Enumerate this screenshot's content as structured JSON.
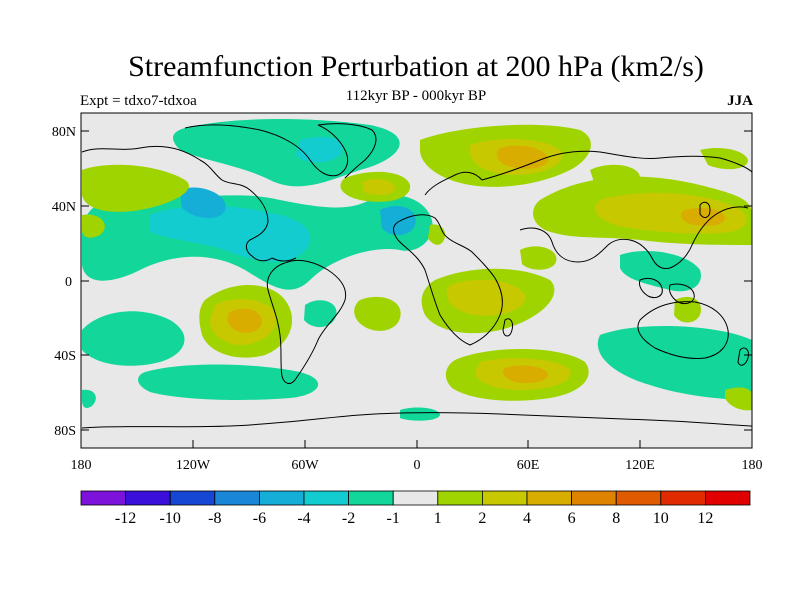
{
  "title": "Streamfunction Perturbation at 200 hPa (km2/s)",
  "subtitle": "112kyr BP - 000kyr BP",
  "experiment": "Expt = tdxo7-tdxoa",
  "season": "JJA",
  "y_ticks": [
    "80N",
    "40N",
    "0",
    "40S",
    "80S"
  ],
  "x_ticks": [
    "180",
    "120W",
    "60W",
    "0",
    "60E",
    "120E",
    "180"
  ],
  "colorbar": {
    "colors": [
      "#7d12db",
      "#3a0fd9",
      "#1546d4",
      "#1a86d6",
      "#14aed6",
      "#13ccd0",
      "#12d69a",
      "#e8e8e8",
      "#a0d400",
      "#c8c800",
      "#d9ac00",
      "#de8300",
      "#e05a00",
      "#e02a00",
      "#e00000"
    ],
    "labels": [
      "-12",
      "-10",
      "-8",
      "-6",
      "-4",
      "-2",
      "-1",
      "1",
      "2",
      "4",
      "6",
      "8",
      "10",
      "12"
    ]
  }
}
